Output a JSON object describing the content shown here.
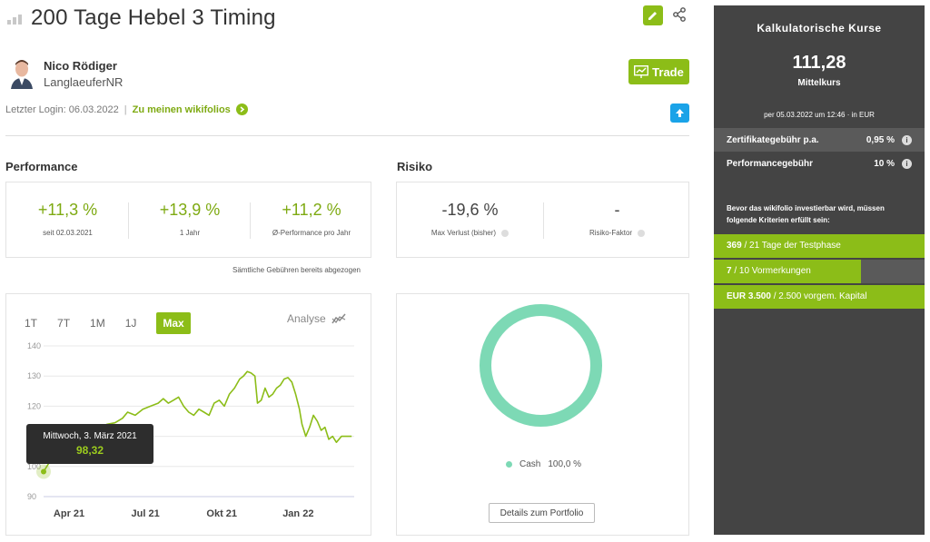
{
  "header": {
    "title": "200 Tage Hebel 3 Timing"
  },
  "author": {
    "name": "Nico Rödiger",
    "nickname": "LanglaeuferNR",
    "last_login_label": "Letzter Login: 06.03.2022",
    "separator": "|",
    "wikifolios_link": "Zu meinen wikifolios"
  },
  "trade_button": "Trade",
  "performance": {
    "title": "Performance",
    "stats": [
      {
        "value": "+11,3 %",
        "label": "seit 02.03.2021"
      },
      {
        "value": "+13,9 %",
        "label": "1 Jahr"
      },
      {
        "value": "+11,2 %",
        "label": "Ø-Performance pro Jahr"
      }
    ],
    "note": "Sämtliche Gebühren bereits abgezogen"
  },
  "risk": {
    "title": "Risiko",
    "stats": [
      {
        "value": "-19,6 %",
        "label": "Max Verlust (bisher)"
      },
      {
        "value": "-",
        "label": "Risiko-Faktor"
      }
    ]
  },
  "chart": {
    "tabs": [
      "1T",
      "7T",
      "1M",
      "1J",
      "Max"
    ],
    "active_tab": "Max",
    "analyse_label": "Analyse",
    "tooltip": {
      "date": "Mittwoch, 3. März 2021",
      "value": "98,32"
    },
    "colors": {
      "line": "#8cbd18",
      "grid": "#e8e8e8"
    }
  },
  "chart_data": {
    "type": "line",
    "ylim": [
      90,
      140
    ],
    "yticks": [
      "90",
      "100",
      "110",
      "120",
      "130",
      "140"
    ],
    "xticks": [
      {
        "label": "Apr 21",
        "x": 1
      },
      {
        "label": "Jul 21",
        "x": 4
      },
      {
        "label": "Okt 21",
        "x": 7
      },
      {
        "label": "Jan 22",
        "x": 10
      }
    ],
    "xlim": [
      0,
      12.2
    ],
    "series": [
      {
        "values": [
          [
            0.0,
            98.3
          ],
          [
            0.2,
            101
          ],
          [
            0.35,
            104
          ],
          [
            0.5,
            106
          ],
          [
            0.8,
            108
          ],
          [
            1.0,
            109
          ],
          [
            1.3,
            110
          ],
          [
            1.6,
            111
          ],
          [
            1.9,
            112
          ],
          [
            2.2,
            113
          ],
          [
            2.5,
            114
          ],
          [
            2.8,
            114.5
          ],
          [
            3.1,
            116
          ],
          [
            3.3,
            118
          ],
          [
            3.6,
            117
          ],
          [
            3.9,
            119
          ],
          [
            4.2,
            120
          ],
          [
            4.5,
            121
          ],
          [
            4.7,
            122.5
          ],
          [
            4.9,
            121
          ],
          [
            5.1,
            122
          ],
          [
            5.3,
            123
          ],
          [
            5.5,
            120
          ],
          [
            5.7,
            118
          ],
          [
            5.9,
            117
          ],
          [
            6.1,
            119
          ],
          [
            6.3,
            118
          ],
          [
            6.5,
            117
          ],
          [
            6.7,
            121
          ],
          [
            6.9,
            122
          ],
          [
            7.1,
            120
          ],
          [
            7.3,
            124
          ],
          [
            7.5,
            126
          ],
          [
            7.7,
            129
          ],
          [
            7.85,
            130
          ],
          [
            8.0,
            131.5
          ],
          [
            8.15,
            131
          ],
          [
            8.3,
            130
          ],
          [
            8.4,
            121
          ],
          [
            8.55,
            122
          ],
          [
            8.7,
            126
          ],
          [
            8.85,
            123
          ],
          [
            9.0,
            124
          ],
          [
            9.15,
            126
          ],
          [
            9.3,
            127
          ],
          [
            9.45,
            129
          ],
          [
            9.6,
            129.5
          ],
          [
            9.75,
            128
          ],
          [
            9.9,
            124
          ],
          [
            10.05,
            119
          ],
          [
            10.15,
            114
          ],
          [
            10.3,
            110
          ],
          [
            10.45,
            113
          ],
          [
            10.6,
            117
          ],
          [
            10.75,
            115
          ],
          [
            10.9,
            112
          ],
          [
            11.05,
            113
          ],
          [
            11.2,
            109
          ],
          [
            11.35,
            110
          ],
          [
            11.5,
            108
          ],
          [
            11.7,
            110
          ],
          [
            11.9,
            110
          ],
          [
            12.1,
            110
          ]
        ]
      }
    ]
  },
  "allocation": {
    "legend_label": "Cash",
    "legend_value": "100,0 %",
    "percent": 100,
    "color": "#7dd9b5",
    "details_button": "Details zum Portfolio"
  },
  "prices": {
    "title": "Kalkulatorische Kurse",
    "price": "111,28",
    "price_label": "Mittelkurs",
    "as_of": "per 05.03.2022 um 12:46 · in EUR",
    "fees": [
      {
        "label": "Zertifikategebühr p.a.",
        "value": "0,95 %"
      },
      {
        "label": "Performancegebühr",
        "value": "10 %"
      }
    ],
    "info_glyph": "i",
    "criteria_note": "Bevor das wikifolio investierbar wird, müssen folgende Kriterien erfüllt sein:",
    "criteria": [
      {
        "bold": "369",
        "rest": " / 21 Tage der Testphase",
        "fraction": 1.0
      },
      {
        "bold": "7",
        "rest": " / 10 Vormerkungen",
        "fraction": 0.7
      },
      {
        "bold": "EUR 3.500",
        "rest": " / 2.500 vorgem. Kapital",
        "fraction": 1.0
      }
    ]
  }
}
